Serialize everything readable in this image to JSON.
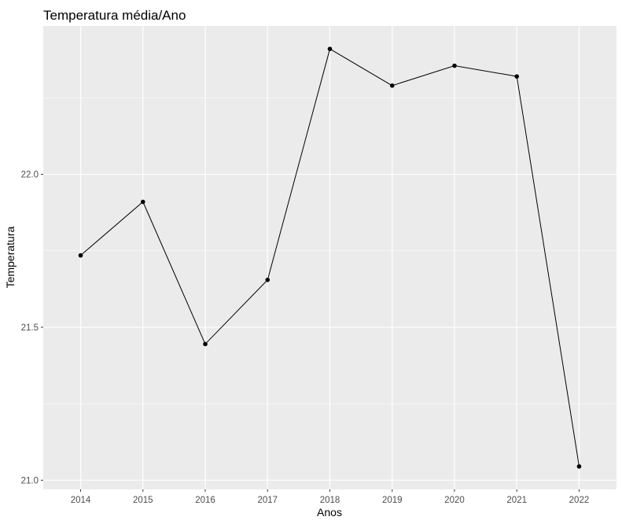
{
  "chart_data": {
    "type": "line",
    "title": "Temperatura média/Ano",
    "xlabel": "Anos",
    "ylabel": "Temperatura",
    "x": [
      "2014",
      "2015",
      "2016",
      "2017",
      "2018",
      "2019",
      "2020",
      "2021",
      "2022"
    ],
    "series": [
      {
        "values": [
          21.735,
          21.91,
          21.445,
          21.655,
          22.41,
          22.29,
          22.355,
          22.32,
          21.045
        ]
      }
    ],
    "yticks": [
      "21.0",
      "21.5",
      "22.0"
    ],
    "ylim": [
      20.97,
      22.485
    ],
    "grid": true,
    "colors": {
      "panel": "#ebebeb",
      "grid": "#ffffff",
      "line": "#000000",
      "point": "#000000",
      "tick_text": "#4d4d4d"
    }
  }
}
